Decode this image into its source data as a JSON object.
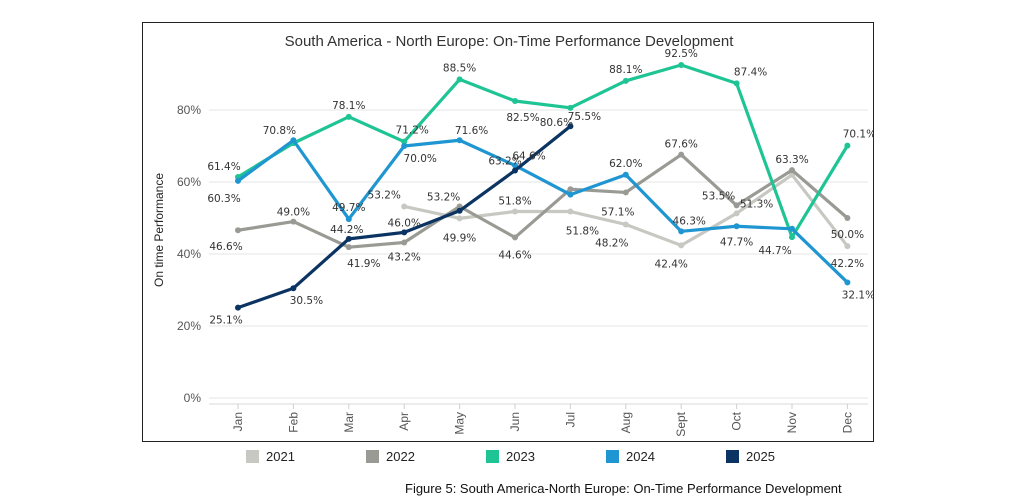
{
  "chart_data": {
    "type": "line",
    "title": "South America - North Europe: On-Time Performance Development",
    "ylabel": "On time Performance",
    "xlabel": "",
    "ylim": [
      0,
      100
    ],
    "y_ticks": [
      0,
      20,
      40,
      60,
      80
    ],
    "y_tick_labels": [
      "0%",
      "20%",
      "40%",
      "60%",
      "80%"
    ],
    "categories": [
      "Jan",
      "Feb",
      "Mar",
      "Apr",
      "May",
      "Jun",
      "Jul",
      "Aug",
      "Sept",
      "Oct",
      "Nov",
      "Dec"
    ],
    "series": [
      {
        "name": "2021",
        "color": "#c8c8c3",
        "values": [
          null,
          null,
          null,
          53.2,
          49.9,
          51.8,
          51.8,
          48.2,
          42.4,
          51.3,
          62.0,
          42.2
        ],
        "labels": [
          null,
          null,
          null,
          "53.2%",
          "49.9%",
          "51.8%",
          "51.8%",
          "48.2%",
          "42.4%",
          "51.3%",
          null,
          "42.2%"
        ]
      },
      {
        "name": "2022",
        "color": "#9a9a95",
        "values": [
          46.6,
          49.0,
          41.9,
          43.2,
          53.2,
          44.6,
          58.0,
          57.1,
          67.6,
          53.5,
          63.3,
          50.0
        ],
        "labels": [
          "46.6%",
          "49.0%",
          "41.9%",
          "43.2%",
          "53.2%",
          "44.6%",
          null,
          "57.1%",
          "67.6%",
          "53.5%",
          "63.3%",
          "50.0%"
        ]
      },
      {
        "name": "2023",
        "color": "#1fc495",
        "values": [
          61.4,
          70.8,
          78.1,
          71.2,
          88.5,
          82.5,
          80.6,
          88.1,
          92.5,
          87.4,
          44.7,
          70.1
        ],
        "labels": [
          "61.4%",
          "70.8%",
          "78.1%",
          "71.2%",
          "88.5%",
          "82.5%",
          "80.6%",
          "88.1%",
          "92.5%",
          "87.4%",
          "44.7%",
          "70.1%"
        ]
      },
      {
        "name": "2024",
        "color": "#1f96d1",
        "values": [
          60.3,
          71.6,
          49.7,
          70.0,
          71.6,
          64.6,
          56.5,
          62.0,
          46.3,
          47.7,
          47.0,
          32.1
        ],
        "labels": [
          "60.3%",
          null,
          "49.7%",
          "70.0%",
          "71.6%",
          "64.6%",
          null,
          "62.0%",
          "46.3%",
          "47.7%",
          null,
          "32.1%"
        ]
      },
      {
        "name": "2025",
        "color": "#0b3463",
        "values": [
          25.1,
          30.5,
          44.2,
          46.0,
          52.0,
          63.2,
          75.5,
          null,
          null,
          null,
          null,
          null
        ],
        "labels": [
          "25.1%",
          "30.5%",
          "44.2%",
          "46.0%",
          null,
          "63.2%",
          "75.5%",
          null,
          null,
          null,
          null,
          null
        ]
      }
    ],
    "legend": {
      "position": "bottom",
      "entries": [
        "2021",
        "2022",
        "2023",
        "2024",
        "2025"
      ]
    }
  },
  "caption": "Figure 5: South America-North Europe: On-Time Performance Development"
}
